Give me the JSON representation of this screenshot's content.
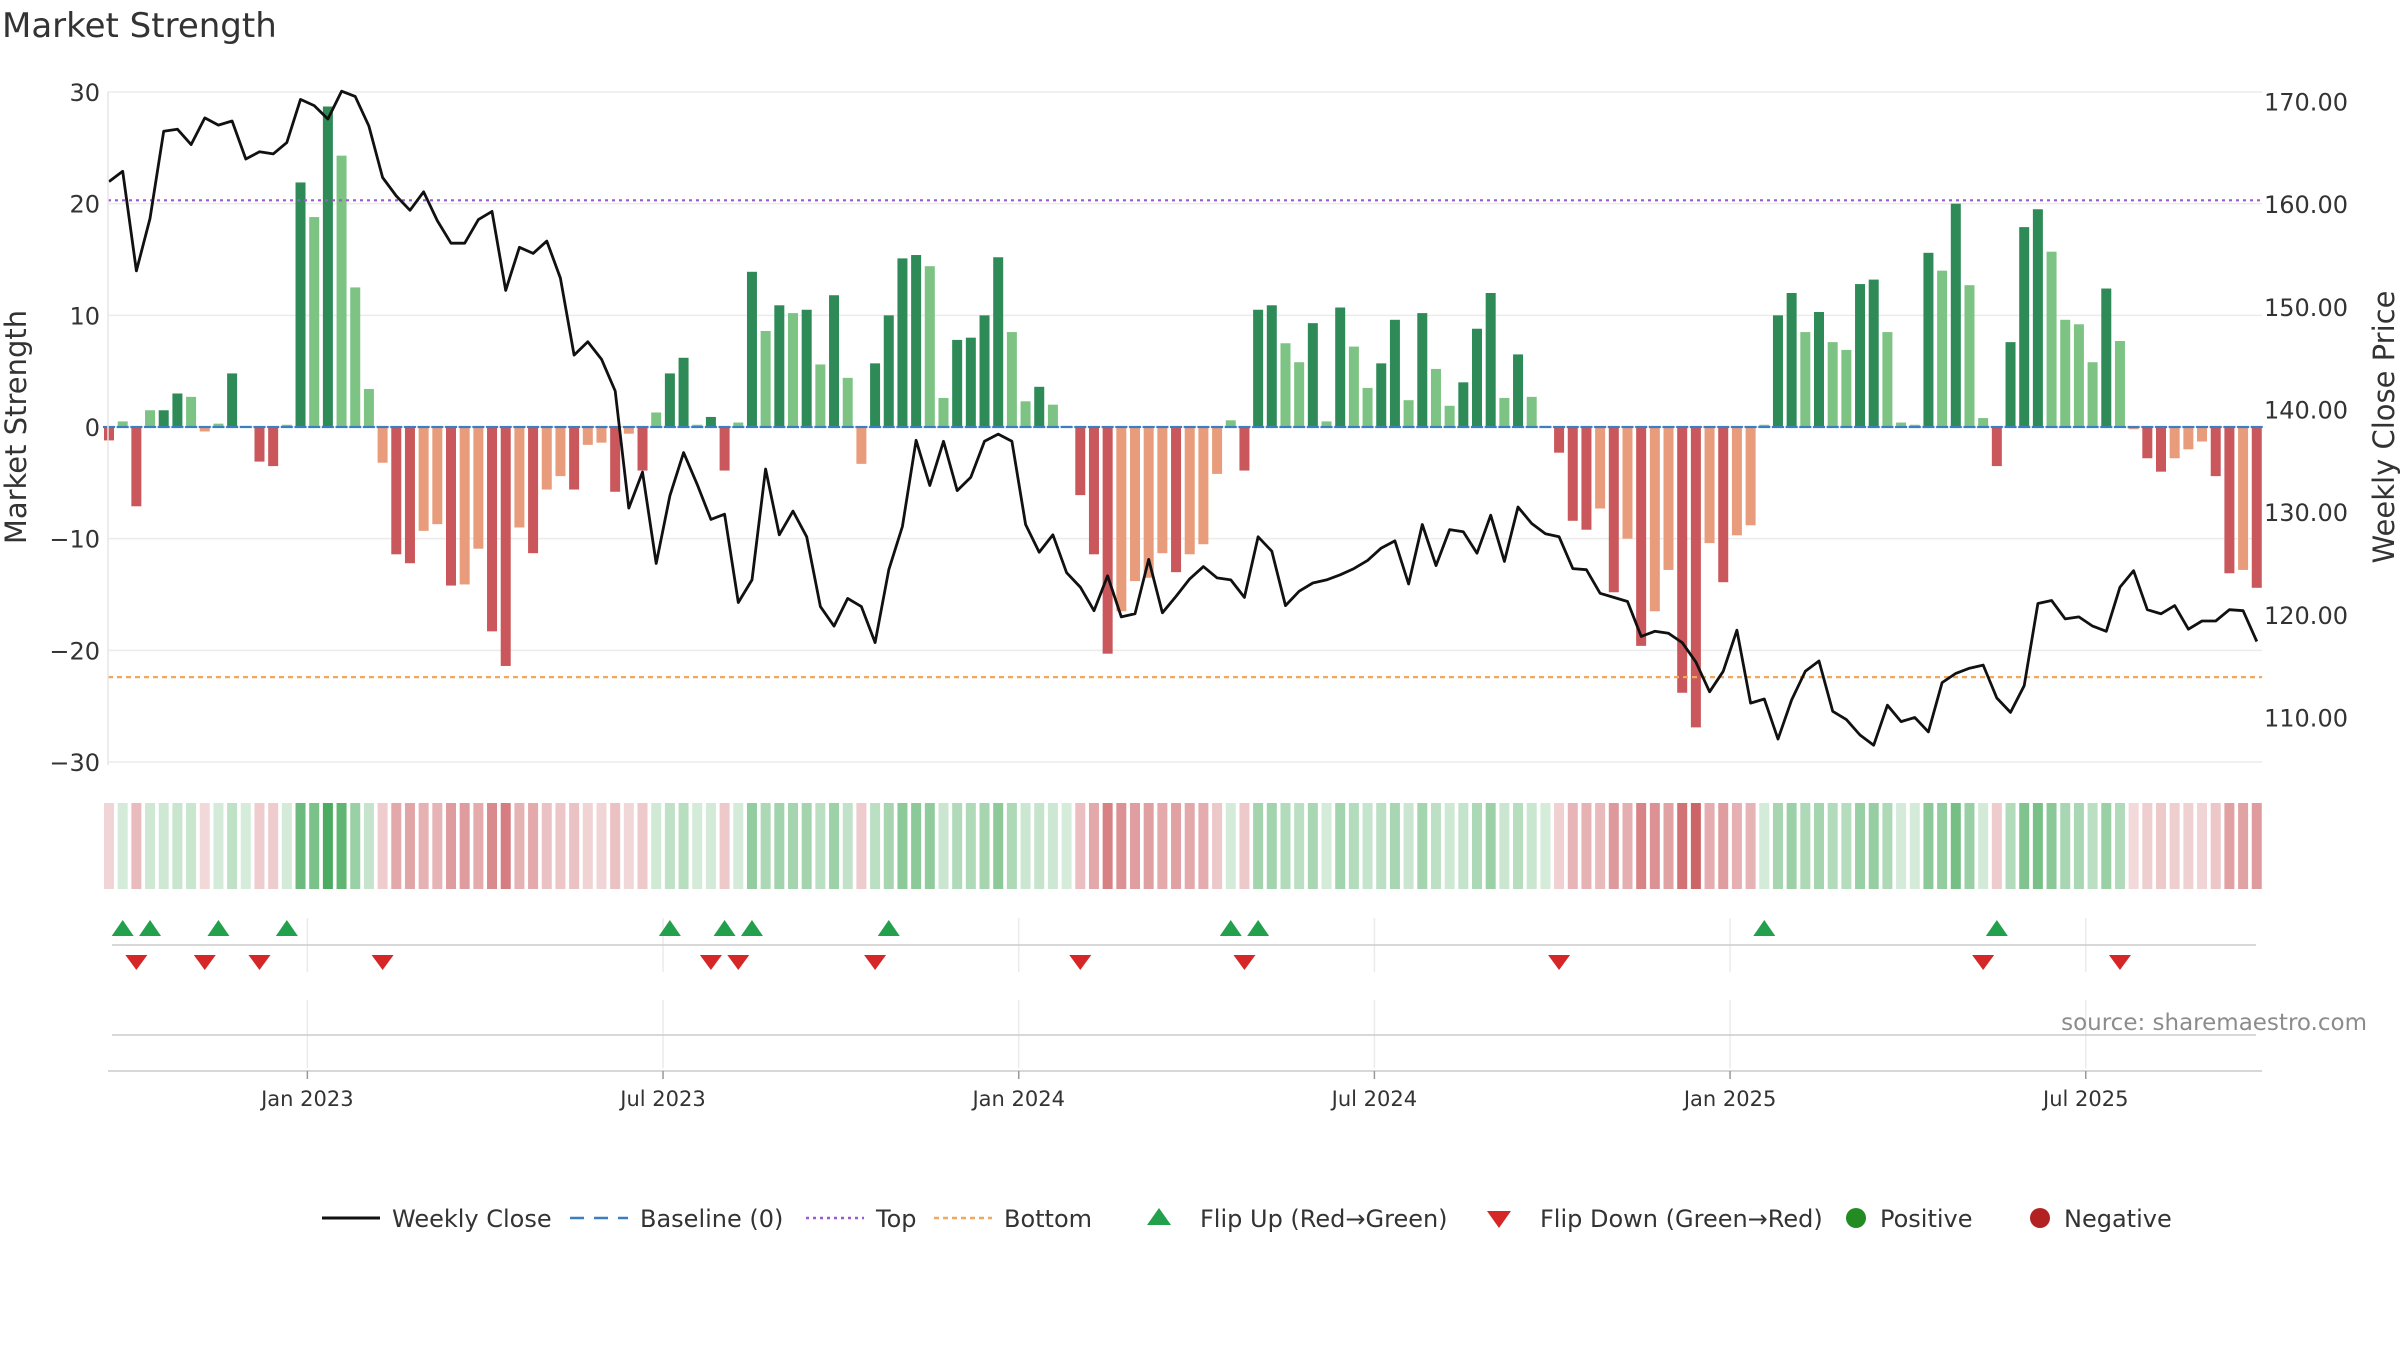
{
  "title": "Market Strength",
  "source": "source: sharemaestro.com",
  "colors": {
    "pos_strong": "#2e8b57",
    "pos_weak": "#7dc383",
    "neg_strong": "#c9575b",
    "neg_weak": "#e89c7c",
    "line": "#111111",
    "baseline": "#3a7fc1",
    "top": "#9b59d0",
    "bottom": "#f0a860",
    "flip_up": "#22a04b",
    "flip_down": "#d62728",
    "dot_pos": "#228b22",
    "dot_neg": "#b22222"
  },
  "chart_data": {
    "type": "bar+line",
    "title": "Market Strength",
    "ylabel_left": "Market Strength",
    "ylabel_right": "Weekly Close Price",
    "ylim_left": [
      -30,
      30
    ],
    "ylim_right": [
      105,
      171
    ],
    "left_ticks": [
      30,
      20,
      10,
      0,
      -10,
      -20,
      -30
    ],
    "left_tick_labels": [
      "30",
      "20",
      "10",
      "0",
      "−10",
      "−20",
      "−30"
    ],
    "right_ticks": [
      170,
      160,
      150,
      140,
      130,
      120,
      110
    ],
    "right_tick_labels": [
      "170.00",
      "160.00",
      "150.00",
      "140.00",
      "130.00",
      "120.00",
      "110.00"
    ],
    "x_tick_labels": [
      "Jan 2023",
      "Jul 2023",
      "Jan 2024",
      "Jul 2024",
      "Jan 2025",
      "Jul 2025"
    ],
    "x_tick_weeks": [
      14.5,
      40.5,
      66.5,
      92.5,
      118.5,
      144.5
    ],
    "top_level": 20.3,
    "bottom_level": -22.4,
    "strength": [
      -1.2,
      0.5,
      -7.1,
      1.5,
      1.5,
      3.0,
      2.7,
      -0.4,
      0.3,
      4.8,
      0.1,
      -3.1,
      -3.5,
      0.2,
      21.9,
      18.8,
      28.7,
      24.3,
      12.5,
      3.4,
      -3.2,
      -11.4,
      -12.2,
      -9.3,
      -8.7,
      -14.2,
      -14.1,
      -10.9,
      -18.3,
      -21.4,
      -9.0,
      -11.3,
      -5.6,
      -4.4,
      -5.6,
      -1.6,
      -1.4,
      -5.8,
      -0.6,
      -3.9,
      1.3,
      4.8,
      6.2,
      0.2,
      0.9,
      -3.9,
      0.4,
      13.9,
      8.6,
      10.9,
      10.2,
      10.5,
      5.6,
      11.8,
      4.4,
      -3.3,
      5.7,
      10.0,
      15.1,
      15.4,
      14.4,
      2.6,
      7.8,
      8.0,
      10.0,
      15.2,
      8.5,
      2.3,
      3.6,
      2.0,
      0.1,
      -6.1,
      -11.4,
      -20.3,
      -16.5,
      -13.8,
      -13.5,
      -11.3,
      -13.0,
      -11.4,
      -10.5,
      -4.2,
      0.6,
      -3.9,
      10.5,
      10.9,
      7.5,
      5.8,
      9.3,
      0.5,
      10.7,
      7.2,
      3.5,
      5.7,
      9.6,
      2.4,
      10.2,
      5.2,
      1.9,
      4.0,
      8.8,
      12.0,
      2.6,
      6.5,
      2.7,
      0.1,
      -2.3,
      -8.4,
      -9.2,
      -7.3,
      -14.8,
      -10.0,
      -19.6,
      -16.5,
      -12.8,
      -23.8,
      -26.9,
      -10.4,
      -13.9,
      -9.7,
      -8.8,
      0.2,
      10.0,
      12.0,
      8.5,
      10.3,
      7.6,
      6.9,
      12.8,
      13.2,
      8.5,
      0.4,
      0.2,
      15.6,
      14.0,
      20.0,
      12.7,
      0.8,
      -3.5,
      7.6,
      17.9,
      19.5,
      15.7,
      9.6,
      9.2,
      5.8,
      12.4,
      7.7,
      -0.2,
      -2.8,
      -4.0,
      -2.8,
      -2.0,
      -1.3,
      -4.4,
      -13.1,
      -12.8,
      -14.4
    ],
    "close": [
      162.2,
      163.2,
      153.5,
      158.6,
      167.1,
      167.3,
      165.8,
      168.4,
      167.7,
      168.1,
      164.4,
      165.1,
      164.9,
      166.0,
      170.2,
      169.6,
      168.3,
      171.0,
      170.5,
      167.6,
      162.6,
      160.8,
      159.4,
      161.2,
      158.4,
      156.2,
      156.2,
      158.5,
      159.3,
      151.6,
      155.8,
      155.2,
      156.4,
      152.8,
      145.3,
      146.6,
      144.9,
      141.8,
      130.4,
      133.9,
      125.0,
      131.6,
      135.8,
      132.7,
      129.3,
      129.8,
      121.2,
      123.4,
      134.2,
      127.8,
      130.1,
      127.6,
      120.8,
      118.9,
      121.6,
      120.8,
      117.3,
      124.4,
      128.6,
      137.0,
      132.6,
      136.9,
      132.1,
      133.4,
      136.9,
      137.6,
      136.9,
      128.8,
      126.1,
      127.8,
      124.1,
      122.7,
      120.4,
      123.8,
      119.8,
      120.1,
      125.4,
      120.2,
      121.8,
      123.5,
      124.7,
      123.6,
      123.4,
      121.7,
      127.6,
      126.2,
      120.9,
      122.3,
      123.1,
      123.4,
      123.9,
      124.5,
      125.3,
      126.5,
      127.2,
      123.0,
      128.8,
      124.8,
      128.3,
      128.1,
      126.0,
      129.7,
      125.2,
      130.5,
      128.9,
      127.9,
      127.6,
      124.5,
      124.4,
      122.1,
      121.7,
      121.3,
      117.9,
      118.4,
      118.2,
      117.3,
      115.4,
      112.5,
      114.5,
      118.5,
      111.4,
      111.8,
      107.9,
      111.7,
      114.5,
      115.5,
      110.6,
      109.8,
      108.3,
      107.3,
      111.2,
      109.6,
      110.0,
      108.6,
      113.4,
      114.3,
      114.8,
      115.1,
      111.9,
      110.5,
      113.1,
      121.1,
      121.4,
      119.6,
      119.8,
      118.9,
      118.4,
      122.7,
      124.3,
      120.5,
      120.1,
      120.9,
      118.6,
      119.4,
      119.4,
      120.5,
      120.4,
      117.4
    ],
    "flip_up_weeks": [
      1,
      3,
      8,
      13,
      41,
      45,
      47,
      57,
      82,
      84,
      121,
      138
    ],
    "flip_down_weeks": [
      2,
      7,
      11,
      20,
      44,
      46,
      56,
      71,
      83,
      106,
      137,
      147
    ]
  },
  "legend": [
    {
      "key": "line",
      "label": "Weekly Close"
    },
    {
      "key": "baseline",
      "label": "Baseline (0)"
    },
    {
      "key": "top",
      "label": "Top"
    },
    {
      "key": "bottom",
      "label": "Bottom"
    },
    {
      "key": "flip_up",
      "label": "Flip Up (Red→Green)"
    },
    {
      "key": "flip_down",
      "label": "Flip Down (Green→Red)"
    },
    {
      "key": "dot_pos",
      "label": "Positive"
    },
    {
      "key": "dot_neg",
      "label": "Negative"
    }
  ]
}
